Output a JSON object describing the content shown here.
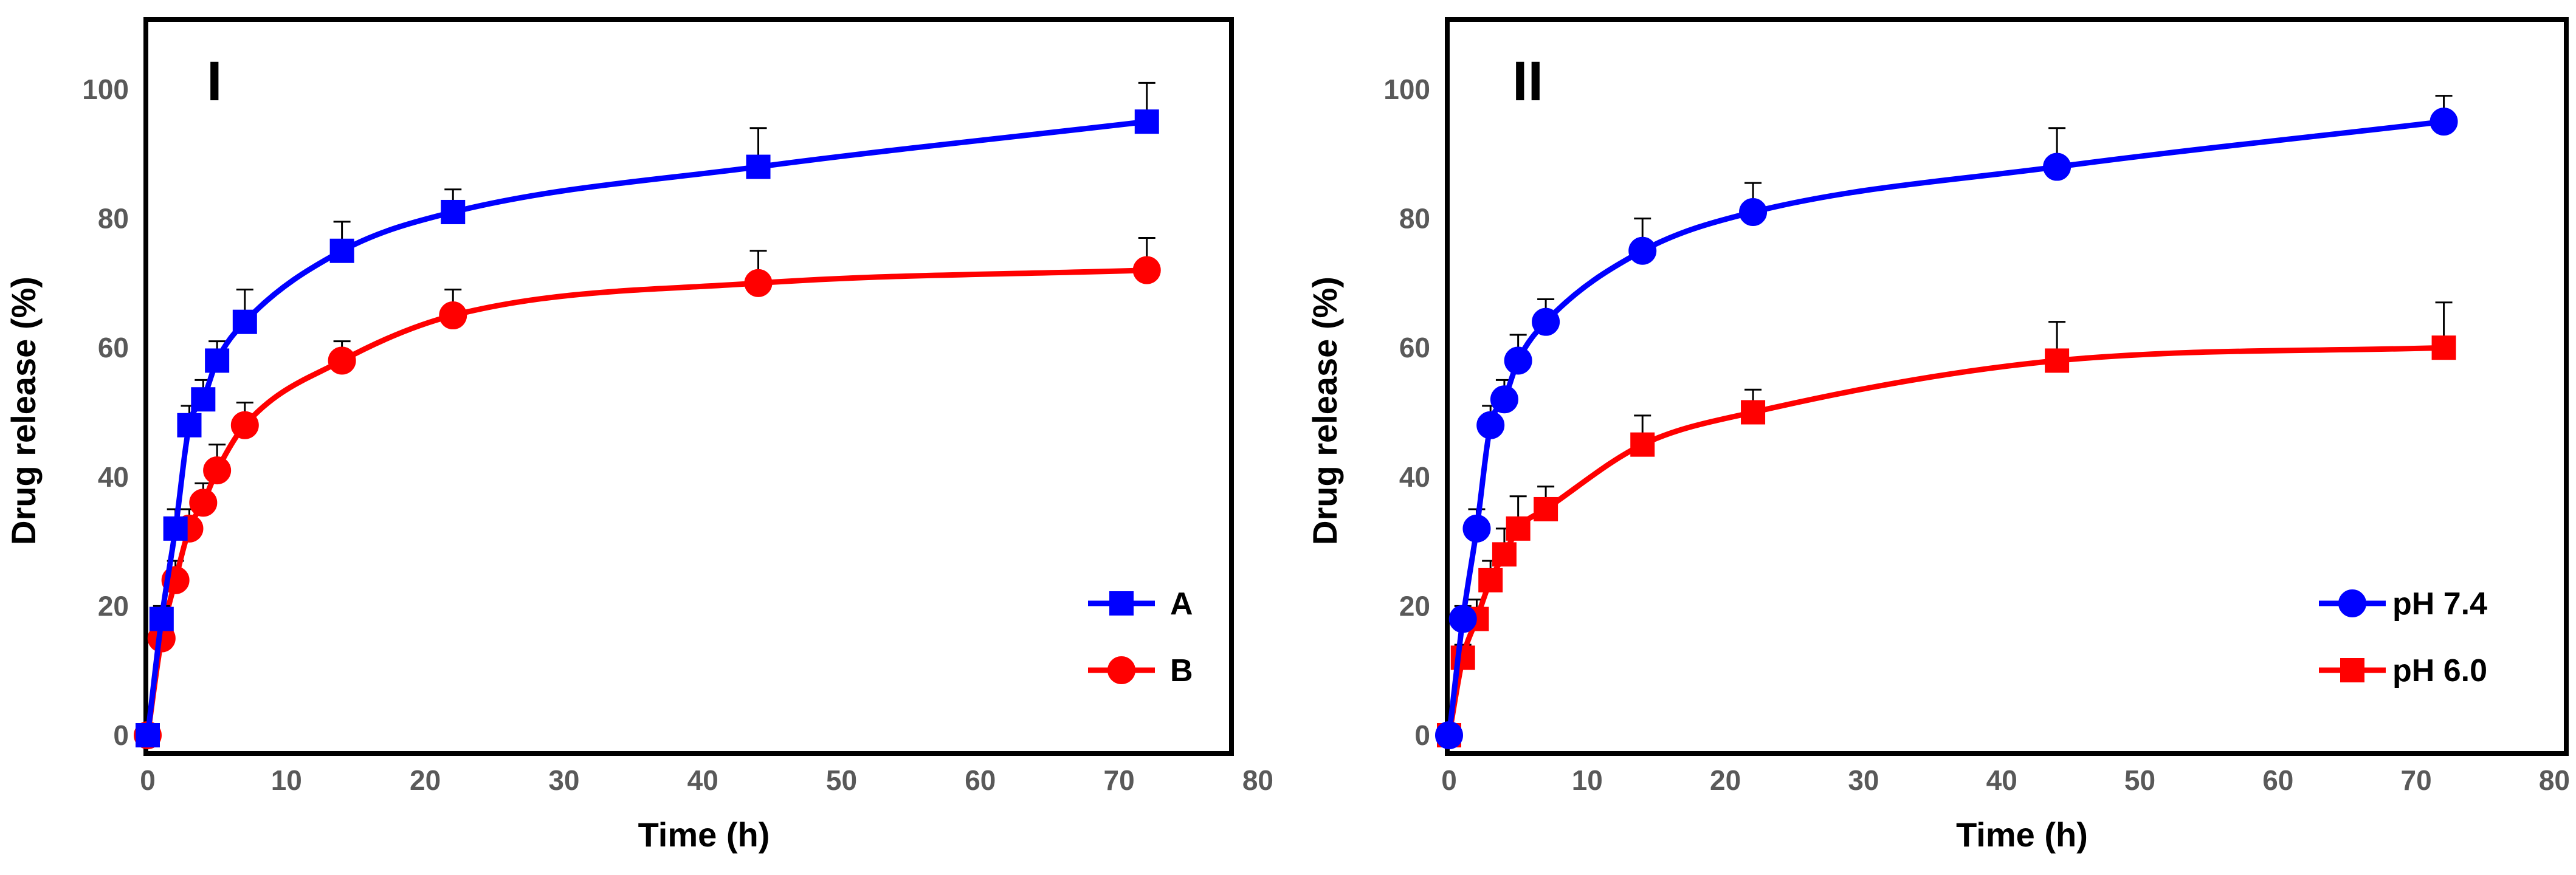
{
  "chart_data": [
    {
      "type": "line",
      "panel_label": "I",
      "title": "",
      "xlabel": "Time (h)",
      "ylabel": "Drug release (%)",
      "xlim": [
        0,
        80
      ],
      "ylim": [
        0,
        110
      ],
      "xticks": [
        0,
        10,
        20,
        30,
        40,
        50,
        60,
        70,
        80
      ],
      "yticks": [
        0,
        20,
        40,
        60,
        80,
        100
      ],
      "grid": false,
      "legend_position": "bottom-right",
      "series": [
        {
          "name": "A",
          "color": "#0000ff",
          "marker": "square",
          "x": [
            0,
            1,
            2,
            3,
            4,
            5,
            7,
            14,
            22,
            44,
            72
          ],
          "y": [
            0,
            18,
            32,
            48,
            52,
            58,
            64,
            75,
            81,
            88,
            95
          ],
          "error": [
            0,
            2,
            3,
            3,
            3,
            3,
            5,
            4.5,
            3.5,
            6,
            6
          ]
        },
        {
          "name": "B",
          "color": "#ff0000",
          "marker": "circle",
          "x": [
            0,
            1,
            2,
            3,
            4,
            5,
            7,
            14,
            22,
            44,
            72
          ],
          "y": [
            0,
            15,
            24,
            32,
            36,
            41,
            48,
            58,
            65,
            70,
            72
          ],
          "error": [
            0,
            2,
            3,
            3,
            3,
            4,
            3.5,
            3,
            4,
            5,
            5
          ]
        }
      ]
    },
    {
      "type": "line",
      "panel_label": "II",
      "title": "",
      "xlabel": "Time (h)",
      "ylabel": "Drug release (%)",
      "xlim": [
        0,
        80
      ],
      "ylim": [
        0,
        110
      ],
      "xticks": [
        0,
        10,
        20,
        30,
        40,
        50,
        60,
        70,
        80
      ],
      "yticks": [
        0,
        20,
        40,
        60,
        80,
        100
      ],
      "grid": false,
      "legend_position": "bottom-right",
      "series": [
        {
          "name": "pH 7.4",
          "color": "#0000ff",
          "marker": "circle",
          "x": [
            0,
            1,
            2,
            3,
            4,
            5,
            7,
            14,
            22,
            44,
            72
          ],
          "y": [
            0,
            18,
            32,
            48,
            52,
            58,
            64,
            75,
            81,
            88,
            95
          ],
          "error": [
            0,
            2,
            3,
            3,
            3,
            4,
            3.5,
            5,
            4.5,
            6,
            4
          ]
        },
        {
          "name": "pH 6.0",
          "color": "#ff0000",
          "marker": "square",
          "x": [
            0,
            1,
            2,
            3,
            4,
            5,
            7,
            14,
            22,
            44,
            72
          ],
          "y": [
            0,
            12,
            18,
            24,
            28,
            32,
            35,
            45,
            50,
            58,
            60
          ],
          "error": [
            0,
            2,
            3,
            3,
            4,
            5,
            3.5,
            4.5,
            3.5,
            6,
            7
          ]
        }
      ]
    }
  ]
}
